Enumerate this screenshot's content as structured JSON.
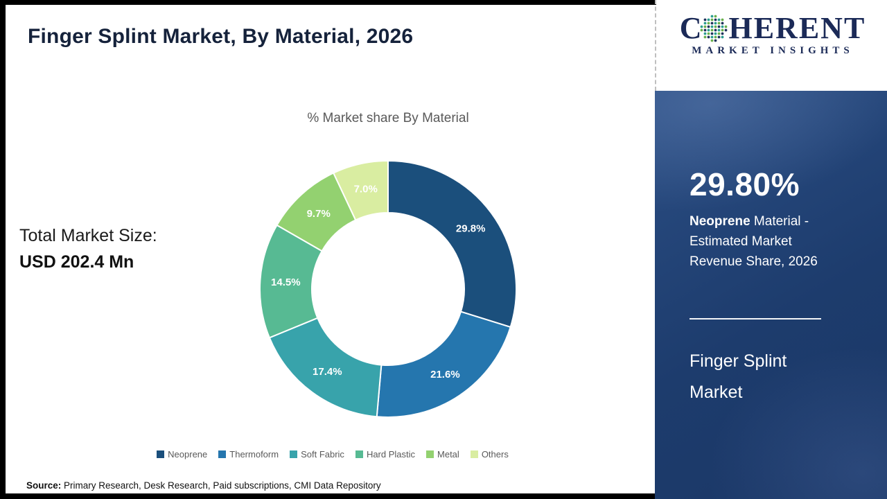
{
  "page": {
    "title": "Finger Splint Market, By Material, 2026",
    "source_label": "Source:",
    "source_text": " Primary Research, Desk Research, Paid subscriptions, CMI Data Repository"
  },
  "logo": {
    "brand_c": "C",
    "brand_rest": "HERENT",
    "tagline": "MARKET INSIGHTS",
    "dot_colors": [
      "#2a9d8f",
      "#6ab04c",
      "#20335c"
    ]
  },
  "total_market": {
    "label": "Total Market Size:",
    "value": "USD 202.4 Mn"
  },
  "sidebar": {
    "highlight_value": "29.80%",
    "desc_bold": "Neoprene",
    "desc_rest": " Material - Estimated Market Revenue Share, 2026",
    "market_name": "Finger Splint Market",
    "panel_color": "#1d3c6d"
  },
  "chart_data": {
    "type": "pie",
    "donut": true,
    "title": "% Market share By Material",
    "categories": [
      "Neoprene",
      "Thermoform",
      "Soft Fabric",
      "Hard Plastic",
      "Metal",
      "Others"
    ],
    "values": [
      29.8,
      21.6,
      17.4,
      14.5,
      9.7,
      7.0
    ],
    "labels": [
      "29.8%",
      "21.6%",
      "17.4%",
      "14.5%",
      "9.7%",
      "7.0%"
    ],
    "colors": [
      "#1b4f7c",
      "#2576ae",
      "#38a3ab",
      "#57ba93",
      "#93d170",
      "#d9eda1"
    ],
    "total_percent": 100,
    "legend_position": "bottom",
    "start_angle_deg": 0,
    "direction": "clockwise"
  }
}
